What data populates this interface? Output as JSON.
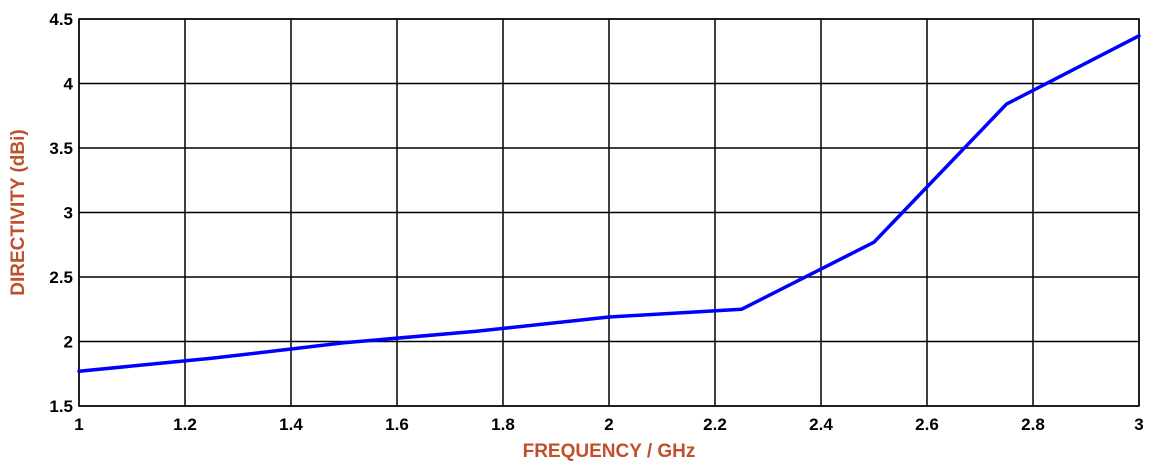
{
  "chart_data": {
    "type": "line",
    "title": "",
    "xlabel": "FREQUENCY / GHz",
    "ylabel": "DIRECTIVITY (dBi)",
    "xlim": [
      1,
      3
    ],
    "ylim": [
      1.5,
      4.5
    ],
    "xticks": [
      "1",
      "1.2",
      "1.4",
      "1.6",
      "1.8",
      "2",
      "2.2",
      "2.4",
      "2.6",
      "2.8",
      "3"
    ],
    "yticks": [
      "1.5",
      "2",
      "2.5",
      "3",
      "3.5",
      "4",
      "4.5"
    ],
    "grid": true,
    "series": [
      {
        "color": "#0000ff",
        "x": [
          1.0,
          1.25,
          1.5,
          1.75,
          2.0,
          2.25,
          2.5,
          2.75,
          3.0
        ],
        "y": [
          1.77,
          1.87,
          1.99,
          2.08,
          2.19,
          2.25,
          2.77,
          3.84,
          4.37
        ]
      }
    ],
    "colors": {
      "axis_title": "#c0502a",
      "grid": "#000000",
      "line": "#0000ff"
    }
  }
}
